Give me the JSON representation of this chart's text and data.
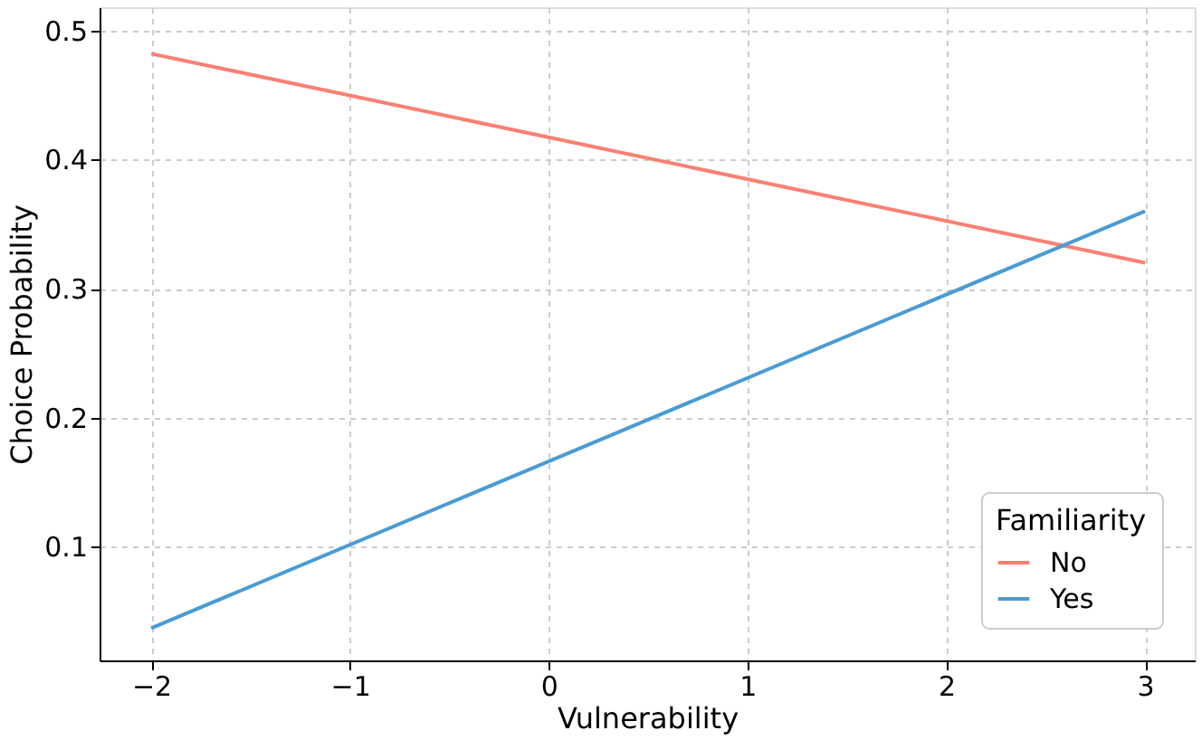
{
  "chart_data": {
    "type": "line",
    "xlabel": "Vulnerability",
    "ylabel": "Choice Probability",
    "legend_title": "Familiarity",
    "x": [
      -2,
      3
    ],
    "series": [
      {
        "name": "No",
        "color": "#fa8072",
        "values": [
          0.482,
          0.32
        ]
      },
      {
        "name": "Yes",
        "color": "#4a9bd4",
        "values": [
          0.037,
          0.36
        ]
      }
    ],
    "xlim": [
      -2.26,
      3.25
    ],
    "xticks": [
      -2,
      -1,
      0,
      1,
      2,
      3
    ],
    "ylim": [
      0.012,
      0.518
    ],
    "yticks": [
      0.1,
      0.2,
      0.3,
      0.4,
      0.5
    ],
    "grid": true,
    "legend": "bottom right",
    "marker": "none",
    "line_style": "solid"
  }
}
